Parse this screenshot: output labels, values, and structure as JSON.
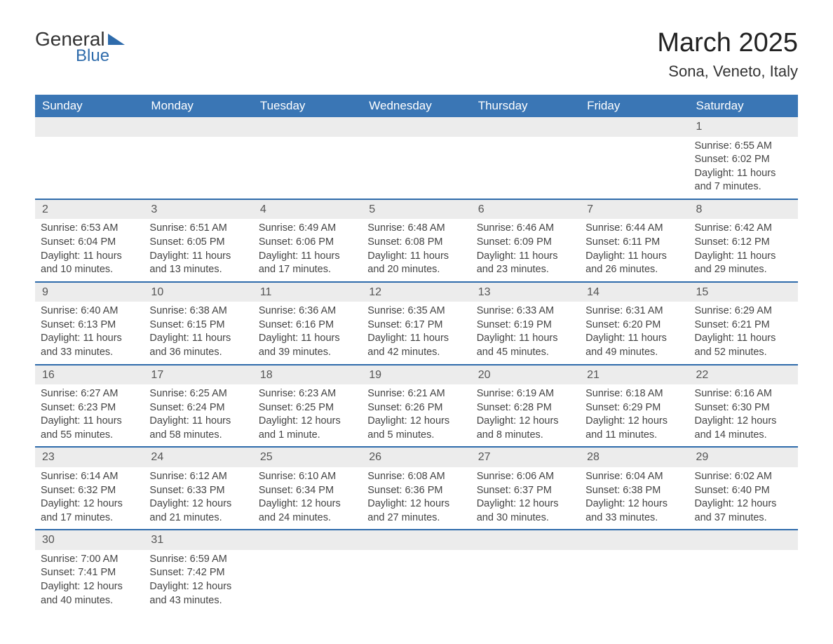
{
  "logo": {
    "general": "General",
    "blue": "Blue"
  },
  "title": "March 2025",
  "location": "Sona, Veneto, Italy",
  "weekdays": [
    "Sunday",
    "Monday",
    "Tuesday",
    "Wednesday",
    "Thursday",
    "Friday",
    "Saturday"
  ],
  "colors": {
    "header_bg": "#3a76b5",
    "header_text": "#ffffff",
    "row_separator": "#2e6bab",
    "daynum_bg": "#ececec",
    "body_text": "#444444"
  },
  "weeks": [
    {
      "nums": [
        "",
        "",
        "",
        "",
        "",
        "",
        "1"
      ],
      "cells": [
        null,
        null,
        null,
        null,
        null,
        null,
        {
          "sunrise": "6:55 AM",
          "sunset": "6:02 PM",
          "daylight": "11 hours and 7 minutes."
        }
      ]
    },
    {
      "nums": [
        "2",
        "3",
        "4",
        "5",
        "6",
        "7",
        "8"
      ],
      "cells": [
        {
          "sunrise": "6:53 AM",
          "sunset": "6:04 PM",
          "daylight": "11 hours and 10 minutes."
        },
        {
          "sunrise": "6:51 AM",
          "sunset": "6:05 PM",
          "daylight": "11 hours and 13 minutes."
        },
        {
          "sunrise": "6:49 AM",
          "sunset": "6:06 PM",
          "daylight": "11 hours and 17 minutes."
        },
        {
          "sunrise": "6:48 AM",
          "sunset": "6:08 PM",
          "daylight": "11 hours and 20 minutes."
        },
        {
          "sunrise": "6:46 AM",
          "sunset": "6:09 PM",
          "daylight": "11 hours and 23 minutes."
        },
        {
          "sunrise": "6:44 AM",
          "sunset": "6:11 PM",
          "daylight": "11 hours and 26 minutes."
        },
        {
          "sunrise": "6:42 AM",
          "sunset": "6:12 PM",
          "daylight": "11 hours and 29 minutes."
        }
      ]
    },
    {
      "nums": [
        "9",
        "10",
        "11",
        "12",
        "13",
        "14",
        "15"
      ],
      "cells": [
        {
          "sunrise": "6:40 AM",
          "sunset": "6:13 PM",
          "daylight": "11 hours and 33 minutes."
        },
        {
          "sunrise": "6:38 AM",
          "sunset": "6:15 PM",
          "daylight": "11 hours and 36 minutes."
        },
        {
          "sunrise": "6:36 AM",
          "sunset": "6:16 PM",
          "daylight": "11 hours and 39 minutes."
        },
        {
          "sunrise": "6:35 AM",
          "sunset": "6:17 PM",
          "daylight": "11 hours and 42 minutes."
        },
        {
          "sunrise": "6:33 AM",
          "sunset": "6:19 PM",
          "daylight": "11 hours and 45 minutes."
        },
        {
          "sunrise": "6:31 AM",
          "sunset": "6:20 PM",
          "daylight": "11 hours and 49 minutes."
        },
        {
          "sunrise": "6:29 AM",
          "sunset": "6:21 PM",
          "daylight": "11 hours and 52 minutes."
        }
      ]
    },
    {
      "nums": [
        "16",
        "17",
        "18",
        "19",
        "20",
        "21",
        "22"
      ],
      "cells": [
        {
          "sunrise": "6:27 AM",
          "sunset": "6:23 PM",
          "daylight": "11 hours and 55 minutes."
        },
        {
          "sunrise": "6:25 AM",
          "sunset": "6:24 PM",
          "daylight": "11 hours and 58 minutes."
        },
        {
          "sunrise": "6:23 AM",
          "sunset": "6:25 PM",
          "daylight": "12 hours and 1 minute."
        },
        {
          "sunrise": "6:21 AM",
          "sunset": "6:26 PM",
          "daylight": "12 hours and 5 minutes."
        },
        {
          "sunrise": "6:19 AM",
          "sunset": "6:28 PM",
          "daylight": "12 hours and 8 minutes."
        },
        {
          "sunrise": "6:18 AM",
          "sunset": "6:29 PM",
          "daylight": "12 hours and 11 minutes."
        },
        {
          "sunrise": "6:16 AM",
          "sunset": "6:30 PM",
          "daylight": "12 hours and 14 minutes."
        }
      ]
    },
    {
      "nums": [
        "23",
        "24",
        "25",
        "26",
        "27",
        "28",
        "29"
      ],
      "cells": [
        {
          "sunrise": "6:14 AM",
          "sunset": "6:32 PM",
          "daylight": "12 hours and 17 minutes."
        },
        {
          "sunrise": "6:12 AM",
          "sunset": "6:33 PM",
          "daylight": "12 hours and 21 minutes."
        },
        {
          "sunrise": "6:10 AM",
          "sunset": "6:34 PM",
          "daylight": "12 hours and 24 minutes."
        },
        {
          "sunrise": "6:08 AM",
          "sunset": "6:36 PM",
          "daylight": "12 hours and 27 minutes."
        },
        {
          "sunrise": "6:06 AM",
          "sunset": "6:37 PM",
          "daylight": "12 hours and 30 minutes."
        },
        {
          "sunrise": "6:04 AM",
          "sunset": "6:38 PM",
          "daylight": "12 hours and 33 minutes."
        },
        {
          "sunrise": "6:02 AM",
          "sunset": "6:40 PM",
          "daylight": "12 hours and 37 minutes."
        }
      ]
    },
    {
      "nums": [
        "30",
        "31",
        "",
        "",
        "",
        "",
        ""
      ],
      "cells": [
        {
          "sunrise": "7:00 AM",
          "sunset": "7:41 PM",
          "daylight": "12 hours and 40 minutes."
        },
        {
          "sunrise": "6:59 AM",
          "sunset": "7:42 PM",
          "daylight": "12 hours and 43 minutes."
        },
        null,
        null,
        null,
        null,
        null
      ]
    }
  ],
  "labels": {
    "sunrise": "Sunrise: ",
    "sunset": "Sunset: ",
    "daylight": "Daylight: "
  }
}
